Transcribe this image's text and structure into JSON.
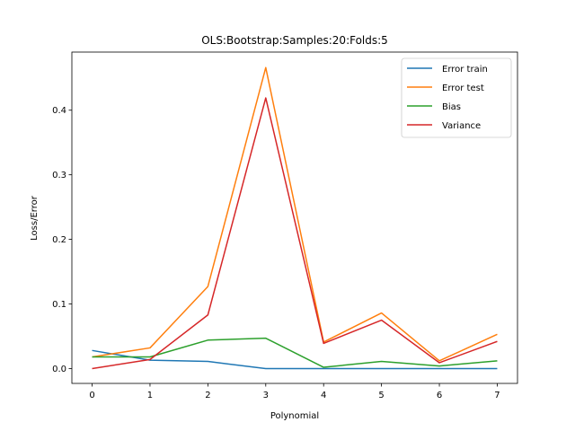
{
  "chart_data": {
    "type": "line",
    "title": "OLS:Bootstrap:Samples:20:Folds:5",
    "xlabel": "Polynomial",
    "ylabel": "Loss/Error",
    "x": [
      0,
      1,
      2,
      3,
      4,
      5,
      6,
      7
    ],
    "xlim": [
      -0.35,
      7.35
    ],
    "ylim": [
      -0.023,
      0.49
    ],
    "xticks": [
      0,
      1,
      2,
      3,
      4,
      5,
      6,
      7
    ],
    "yticks": [
      0.0,
      0.1,
      0.2,
      0.3,
      0.4
    ],
    "ytick_labels": [
      "0.0",
      "0.1",
      "0.2",
      "0.3",
      "0.4"
    ],
    "grid": false,
    "legend_position": "top-right",
    "series": [
      {
        "name": "Error train",
        "color": "#1f77b4",
        "values": [
          0.028,
          0.013,
          0.011,
          0.0,
          0.0,
          0.0,
          0.0,
          0.0
        ]
      },
      {
        "name": "Error test",
        "color": "#ff7f0e",
        "values": [
          0.018,
          0.032,
          0.127,
          0.466,
          0.041,
          0.086,
          0.012,
          0.053
        ]
      },
      {
        "name": "Bias",
        "color": "#2ca02c",
        "values": [
          0.018,
          0.018,
          0.044,
          0.047,
          0.002,
          0.011,
          0.004,
          0.012
        ]
      },
      {
        "name": "Variance",
        "color": "#d62728",
        "values": [
          0.0,
          0.014,
          0.083,
          0.419,
          0.039,
          0.075,
          0.009,
          0.042
        ]
      }
    ]
  }
}
